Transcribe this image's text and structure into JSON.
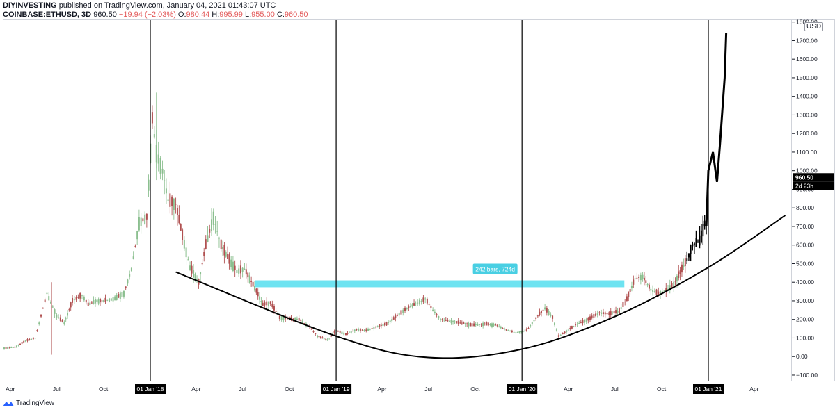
{
  "header": {
    "publisher": "DIYINVESTING",
    "published_text": "published on TradingView.com, January 04, 2021 01:43:07 UTC",
    "symbol": "COINBASE:ETHUSD, 3D",
    "last": "960.50",
    "change": "−19.94 (−2.03%)",
    "o_label": "O:",
    "o_value": "980.44",
    "h_label": "H:",
    "h_value": "995.99",
    "l_label": "L:",
    "l_value": "955.00",
    "c_label": "C:",
    "c_value": "960.50"
  },
  "price_scale": {
    "currency": "USD",
    "last_price_badge": "960.50",
    "countdown_badge": "2d 23h"
  },
  "measure_label": "242 bars, 724d",
  "footer": {
    "brand": "TradingView"
  },
  "colors": {
    "up": "#26a69a",
    "down": "#ef5350",
    "candle_up": "#8bbf8f",
    "candle_down": "#b05050",
    "measure_band": "#5ee0ef",
    "measure_label_bg": "#49cfe3",
    "vertical_line": "#000000",
    "curve": "#000000"
  },
  "chart_data": {
    "type": "line",
    "title": "",
    "xlabel": "",
    "ylabel": "",
    "ylim": [
      -130,
      1810
    ],
    "y_ticks": [
      -100,
      0,
      100,
      200,
      300,
      400,
      500,
      600,
      700,
      800,
      900,
      1000,
      1100,
      1200,
      1300,
      1400,
      1500,
      1600,
      1700,
      1800
    ],
    "y_tick_labels": [
      "−100.00",
      "0.00",
      "100.00",
      "200.00",
      "300.00",
      "400.00",
      "500.00",
      "600.00",
      "700.00",
      "800.00",
      "900.00",
      "1000.00",
      "1100.00",
      "1200.00",
      "1300.00",
      "1400.00",
      "1500.00",
      "1600.00",
      "1700.00",
      "1800.00"
    ],
    "x_ticks": [
      {
        "label": "Apr",
        "date": "2017-04-01",
        "highlight": false
      },
      {
        "label": "Jul",
        "date": "2017-07-01",
        "highlight": false
      },
      {
        "label": "Oct",
        "date": "2017-10-01",
        "highlight": false
      },
      {
        "label": "01 Jan '18",
        "date": "2018-01-01",
        "highlight": true
      },
      {
        "label": "Apr",
        "date": "2018-04-01",
        "highlight": false
      },
      {
        "label": "Jul",
        "date": "2018-07-01",
        "highlight": false
      },
      {
        "label": "Oct",
        "date": "2018-10-01",
        "highlight": false
      },
      {
        "label": "01 Jan '19",
        "date": "2019-01-01",
        "highlight": true
      },
      {
        "label": "Apr",
        "date": "2019-04-01",
        "highlight": false
      },
      {
        "label": "Jul",
        "date": "2019-07-01",
        "highlight": false
      },
      {
        "label": "Oct",
        "date": "2019-10-01",
        "highlight": false
      },
      {
        "label": "01 Jan '20",
        "date": "2020-01-01",
        "highlight": true
      },
      {
        "label": "Apr",
        "date": "2020-04-01",
        "highlight": false
      },
      {
        "label": "Jul",
        "date": "2020-07-01",
        "highlight": false
      },
      {
        "label": "Oct",
        "date": "2020-10-01",
        "highlight": false
      },
      {
        "label": "01 Jan '21",
        "date": "2021-01-01",
        "highlight": true
      },
      {
        "label": "Apr",
        "date": "2021-04-01",
        "highlight": false
      }
    ],
    "vertical_lines": [
      "2018-01-01",
      "2019-01-01",
      "2020-01-01",
      "2021-01-01"
    ],
    "series": [
      {
        "type": "candlestick-approx",
        "x": [
          "2017-03-20",
          "2017-04-10",
          "2017-05-01",
          "2017-05-20",
          "2017-06-12",
          "2017-07-01",
          "2017-07-16",
          "2017-08-01",
          "2017-08-20",
          "2017-09-01",
          "2017-09-15",
          "2017-10-01",
          "2017-10-20",
          "2017-11-10",
          "2017-11-25",
          "2017-12-10",
          "2017-12-25",
          "2018-01-05",
          "2018-01-13",
          "2018-01-25",
          "2018-02-05",
          "2018-02-20",
          "2018-03-05",
          "2018-03-20",
          "2018-04-06",
          "2018-04-20",
          "2018-05-05",
          "2018-05-20",
          "2018-06-05",
          "2018-06-20",
          "2018-07-05",
          "2018-07-25",
          "2018-08-10",
          "2018-08-25",
          "2018-09-12",
          "2018-10-01",
          "2018-10-20",
          "2018-11-10",
          "2018-11-25",
          "2018-12-15",
          "2019-01-01",
          "2019-01-20",
          "2019-02-10",
          "2019-03-01",
          "2019-03-20",
          "2019-04-10",
          "2019-05-01",
          "2019-05-20",
          "2019-06-10",
          "2019-06-25",
          "2019-07-10",
          "2019-07-25",
          "2019-08-15",
          "2019-09-05",
          "2019-09-25",
          "2019-10-20",
          "2019-11-10",
          "2019-12-01",
          "2019-12-20",
          "2020-01-10",
          "2020-02-01",
          "2020-02-15",
          "2020-03-01",
          "2020-03-13",
          "2020-03-25",
          "2020-04-15",
          "2020-05-10",
          "2020-06-01",
          "2020-06-20",
          "2020-07-10",
          "2020-07-25",
          "2020-08-10",
          "2020-08-25",
          "2020-09-10",
          "2020-09-25",
          "2020-10-10",
          "2020-10-25",
          "2020-11-10",
          "2020-11-20",
          "2020-12-01",
          "2020-12-15",
          "2020-12-28",
          "2021-01-03"
        ],
        "values": [
          45,
          50,
          85,
          100,
          340,
          220,
          180,
          300,
          330,
          280,
          300,
          300,
          310,
          340,
          470,
          720,
          750,
          1280,
          1100,
          1000,
          840,
          820,
          650,
          480,
          400,
          600,
          750,
          600,
          520,
          460,
          470,
          370,
          280,
          290,
          210,
          205,
          200,
          160,
          110,
          90,
          140,
          120,
          145,
          140,
          160,
          175,
          220,
          260,
          290,
          310,
          250,
          200,
          190,
          180,
          170,
          175,
          170,
          145,
          128,
          140,
          220,
          260,
          210,
          110,
          130,
          170,
          200,
          235,
          230,
          245,
          310,
          420,
          430,
          360,
          340,
          355,
          390,
          470,
          520,
          600,
          620,
          750,
          960.5
        ]
      }
    ],
    "annotations": [
      {
        "type": "curve",
        "text": "",
        "points": [
          [
            "2018-02-20",
            455
          ],
          [
            "2019-01-01",
            110
          ],
          [
            "2019-07-01",
            -5
          ],
          [
            "2020-01-01",
            40
          ],
          [
            "2020-07-01",
            215
          ],
          [
            "2021-01-01",
            480
          ],
          [
            "2021-06-01",
            760
          ]
        ]
      },
      {
        "type": "range-band",
        "text": "242 bars, 724d",
        "x_start": "2018-07-25",
        "x_end": "2020-07-20",
        "y_low": 373,
        "y_high": 410
      }
    ]
  }
}
